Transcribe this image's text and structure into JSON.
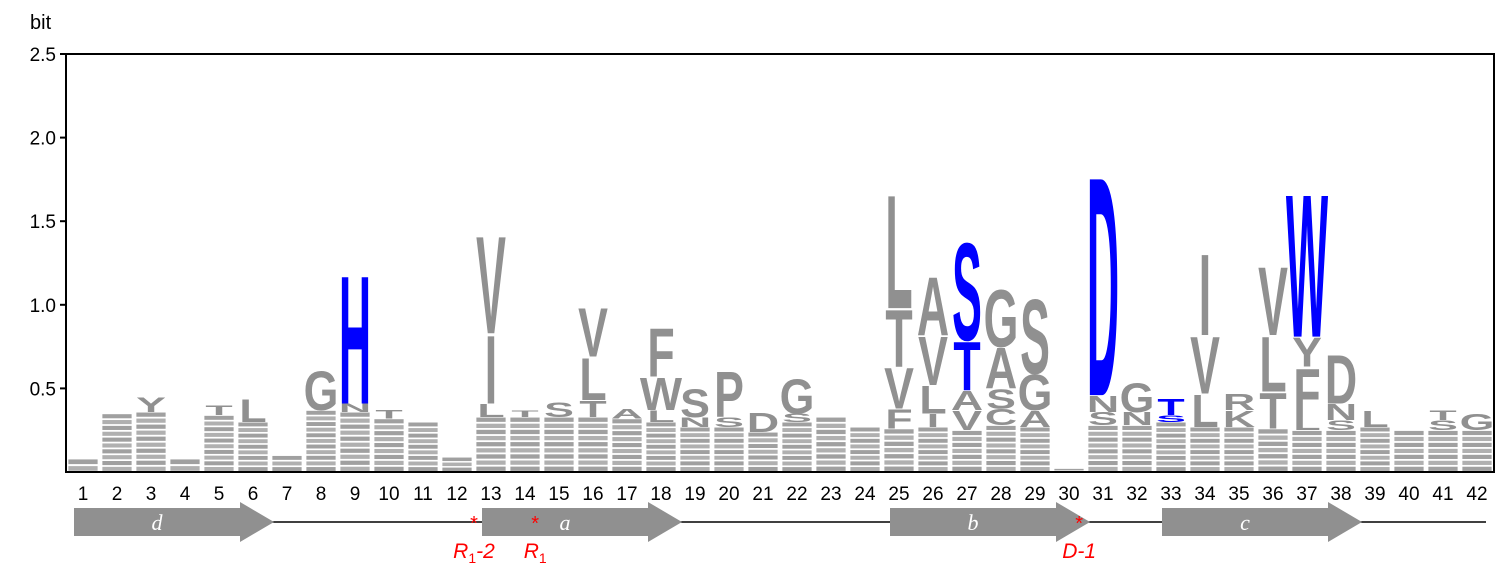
{
  "chart_data": {
    "type": "sequence-logo",
    "ylabel": "bit",
    "ylim": [
      0,
      2.5
    ],
    "yticks": [
      0.5,
      1.0,
      1.5,
      2.0,
      2.5
    ],
    "ytick_labels": [
      "0.5",
      "1.0",
      "1.5",
      "2.0",
      "2.5"
    ],
    "positions": [
      1,
      2,
      3,
      4,
      5,
      6,
      7,
      8,
      9,
      10,
      11,
      12,
      13,
      14,
      15,
      16,
      17,
      18,
      19,
      20,
      21,
      22,
      23,
      24,
      25,
      26,
      27,
      28,
      29,
      30,
      31,
      32,
      33,
      34,
      35,
      36,
      37,
      38,
      39,
      40,
      41,
      42
    ],
    "xtick_labels": [
      "1",
      "2",
      "3",
      "4",
      "5",
      "6",
      "7",
      "8",
      "9",
      "10",
      "11",
      "12",
      "13",
      "14",
      "15",
      "16",
      "17",
      "18",
      "19",
      "20",
      "21",
      "22",
      "23",
      "24",
      "25",
      "26",
      "27",
      "28",
      "29",
      "30",
      "31",
      "32",
      "33",
      "34",
      "35",
      "36",
      "37",
      "38",
      "39",
      "40",
      "41",
      "42"
    ],
    "colors": {
      "highlight": "#0000ff",
      "default": "#909090",
      "annotation": "#ff0000"
    },
    "letters": [
      {
        "pos": 1,
        "stack": []
      },
      {
        "pos": 2,
        "stack": []
      },
      {
        "pos": 3,
        "stack": [
          {
            "letter": "Y",
            "bits": 0.09
          }
        ]
      },
      {
        "pos": 4,
        "stack": []
      },
      {
        "pos": 5,
        "stack": [
          {
            "letter": "T",
            "bits": 0.06
          }
        ]
      },
      {
        "pos": 6,
        "stack": [
          {
            "letter": "L",
            "bits": 0.14
          }
        ]
      },
      {
        "pos": 7,
        "stack": []
      },
      {
        "pos": 8,
        "stack": [
          {
            "letter": "G",
            "bits": 0.24
          }
        ]
      },
      {
        "pos": 9,
        "stack": [
          {
            "letter": "H",
            "bits": 0.79,
            "color": "#0000ff"
          },
          {
            "letter": "N",
            "bits": 0.05
          }
        ]
      },
      {
        "pos": 10,
        "stack": [
          {
            "letter": "T",
            "bits": 0.05
          }
        ]
      },
      {
        "pos": 11,
        "stack": []
      },
      {
        "pos": 12,
        "stack": []
      },
      {
        "pos": 13,
        "stack": [
          {
            "letter": "V",
            "bits": 0.6
          },
          {
            "letter": "I",
            "bits": 0.42
          },
          {
            "letter": "L",
            "bits": 0.08
          }
        ]
      },
      {
        "pos": 14,
        "stack": [
          {
            "letter": "T",
            "bits": 0.04
          }
        ]
      },
      {
        "pos": 15,
        "stack": [
          {
            "letter": "S",
            "bits": 0.09
          }
        ]
      },
      {
        "pos": 16,
        "stack": [
          {
            "letter": "V",
            "bits": 0.3
          },
          {
            "letter": "L",
            "bits": 0.26
          },
          {
            "letter": "T",
            "bits": 0.1
          }
        ]
      },
      {
        "pos": 17,
        "stack": [
          {
            "letter": "A",
            "bits": 0.06
          }
        ]
      },
      {
        "pos": 18,
        "stack": [
          {
            "letter": "F",
            "bits": 0.3
          },
          {
            "letter": "W",
            "bits": 0.2
          },
          {
            "letter": "L",
            "bits": 0.07
          }
        ]
      },
      {
        "pos": 19,
        "stack": [
          {
            "letter": "S",
            "bits": 0.17
          },
          {
            "letter": "N",
            "bits": 0.06
          }
        ]
      },
      {
        "pos": 20,
        "stack": [
          {
            "letter": "P",
            "bits": 0.28
          },
          {
            "letter": "S",
            "bits": 0.06
          }
        ]
      },
      {
        "pos": 21,
        "stack": [
          {
            "letter": "D",
            "bits": 0.12
          }
        ]
      },
      {
        "pos": 22,
        "stack": [
          {
            "letter": "G",
            "bits": 0.21
          },
          {
            "letter": "S",
            "bits": 0.05
          }
        ]
      },
      {
        "pos": 23,
        "stack": []
      },
      {
        "pos": 24,
        "stack": []
      },
      {
        "pos": 25,
        "stack": [
          {
            "letter": "L",
            "bits": 0.7
          },
          {
            "letter": "T",
            "bits": 0.35
          },
          {
            "letter": "V",
            "bits": 0.25
          },
          {
            "letter": "F",
            "bits": 0.12
          }
        ]
      },
      {
        "pos": 26,
        "stack": [
          {
            "letter": "A",
            "bits": 0.36
          },
          {
            "letter": "V",
            "bits": 0.3
          },
          {
            "letter": "L",
            "bits": 0.17
          },
          {
            "letter": "I",
            "bits": 0.08
          }
        ]
      },
      {
        "pos": 27,
        "stack": [
          {
            "letter": "S",
            "bits": 0.6,
            "color": "#0000ff"
          },
          {
            "letter": "T",
            "bits": 0.3,
            "color": "#0000ff"
          },
          {
            "letter": "A",
            "bits": 0.12
          },
          {
            "letter": "V",
            "bits": 0.12
          }
        ]
      },
      {
        "pos": 28,
        "stack": [
          {
            "letter": "G",
            "bits": 0.35
          },
          {
            "letter": "A",
            "bits": 0.25
          },
          {
            "letter": "S",
            "bits": 0.12
          },
          {
            "letter": "C",
            "bits": 0.1
          }
        ]
      },
      {
        "pos": 29,
        "stack": [
          {
            "letter": "S",
            "bits": 0.46
          },
          {
            "letter": "G",
            "bits": 0.22
          },
          {
            "letter": "A",
            "bits": 0.1
          }
        ]
      },
      {
        "pos": 30,
        "stack": []
      },
      {
        "pos": 31,
        "stack": [
          {
            "letter": "D",
            "bits": 1.35,
            "color": "#0000ff"
          },
          {
            "letter": "N",
            "bits": 0.1
          },
          {
            "letter": "S",
            "bits": 0.08
          }
        ]
      },
      {
        "pos": 32,
        "stack": [
          {
            "letter": "G",
            "bits": 0.18
          },
          {
            "letter": "N",
            "bits": 0.08
          }
        ]
      },
      {
        "pos": 33,
        "stack": [
          {
            "letter": "T",
            "bits": 0.1,
            "color": "#0000ff"
          },
          {
            "letter": "S",
            "bits": 0.04,
            "color": "#0000ff"
          }
        ]
      },
      {
        "pos": 34,
        "stack": [
          {
            "letter": "I",
            "bits": 0.5
          },
          {
            "letter": "V",
            "bits": 0.35
          },
          {
            "letter": "L",
            "bits": 0.2
          }
        ]
      },
      {
        "pos": 35,
        "stack": [
          {
            "letter": "R",
            "bits": 0.1
          },
          {
            "letter": "K",
            "bits": 0.1
          }
        ]
      },
      {
        "pos": 36,
        "stack": [
          {
            "letter": "V",
            "bits": 0.42
          },
          {
            "letter": "L",
            "bits": 0.34
          },
          {
            "letter": "T",
            "bits": 0.22
          }
        ]
      },
      {
        "pos": 37,
        "stack": [
          {
            "letter": "W",
            "bits": 0.88,
            "color": "#0000ff"
          },
          {
            "letter": "Y",
            "bits": 0.18
          },
          {
            "letter": "F",
            "bits": 0.3
          },
          {
            "letter": "L",
            "bits": 0.08
          }
        ]
      },
      {
        "pos": 38,
        "stack": [
          {
            "letter": "D",
            "bits": 0.3
          },
          {
            "letter": "N",
            "bits": 0.1
          },
          {
            "letter": "S",
            "bits": 0.06
          }
        ]
      },
      {
        "pos": 39,
        "stack": [
          {
            "letter": "L",
            "bits": 0.1
          }
        ]
      },
      {
        "pos": 40,
        "stack": []
      },
      {
        "pos": 41,
        "stack": [
          {
            "letter": "T",
            "bits": 0.06
          },
          {
            "letter": "S",
            "bits": 0.06
          }
        ]
      },
      {
        "pos": 42,
        "stack": [
          {
            "letter": "G",
            "bits": 0.1
          }
        ]
      }
    ],
    "secondary_structure": [
      {
        "label": "d",
        "start": 1,
        "end": 6
      },
      {
        "label": "a",
        "start": 13,
        "end": 18
      },
      {
        "label": "b",
        "start": 25,
        "end": 30
      },
      {
        "label": "c",
        "start": 33,
        "end": 38
      }
    ],
    "annotations": [
      {
        "label": "R",
        "sub": "1",
        "suffix": "-2",
        "pos": 12.5,
        "marker": "*"
      },
      {
        "label": "R",
        "sub": "1",
        "suffix": "",
        "pos": 14.3,
        "marker": "*"
      },
      {
        "label": "D-1",
        "sub": "",
        "suffix": "",
        "pos": 30.3,
        "marker": "*"
      }
    ]
  }
}
